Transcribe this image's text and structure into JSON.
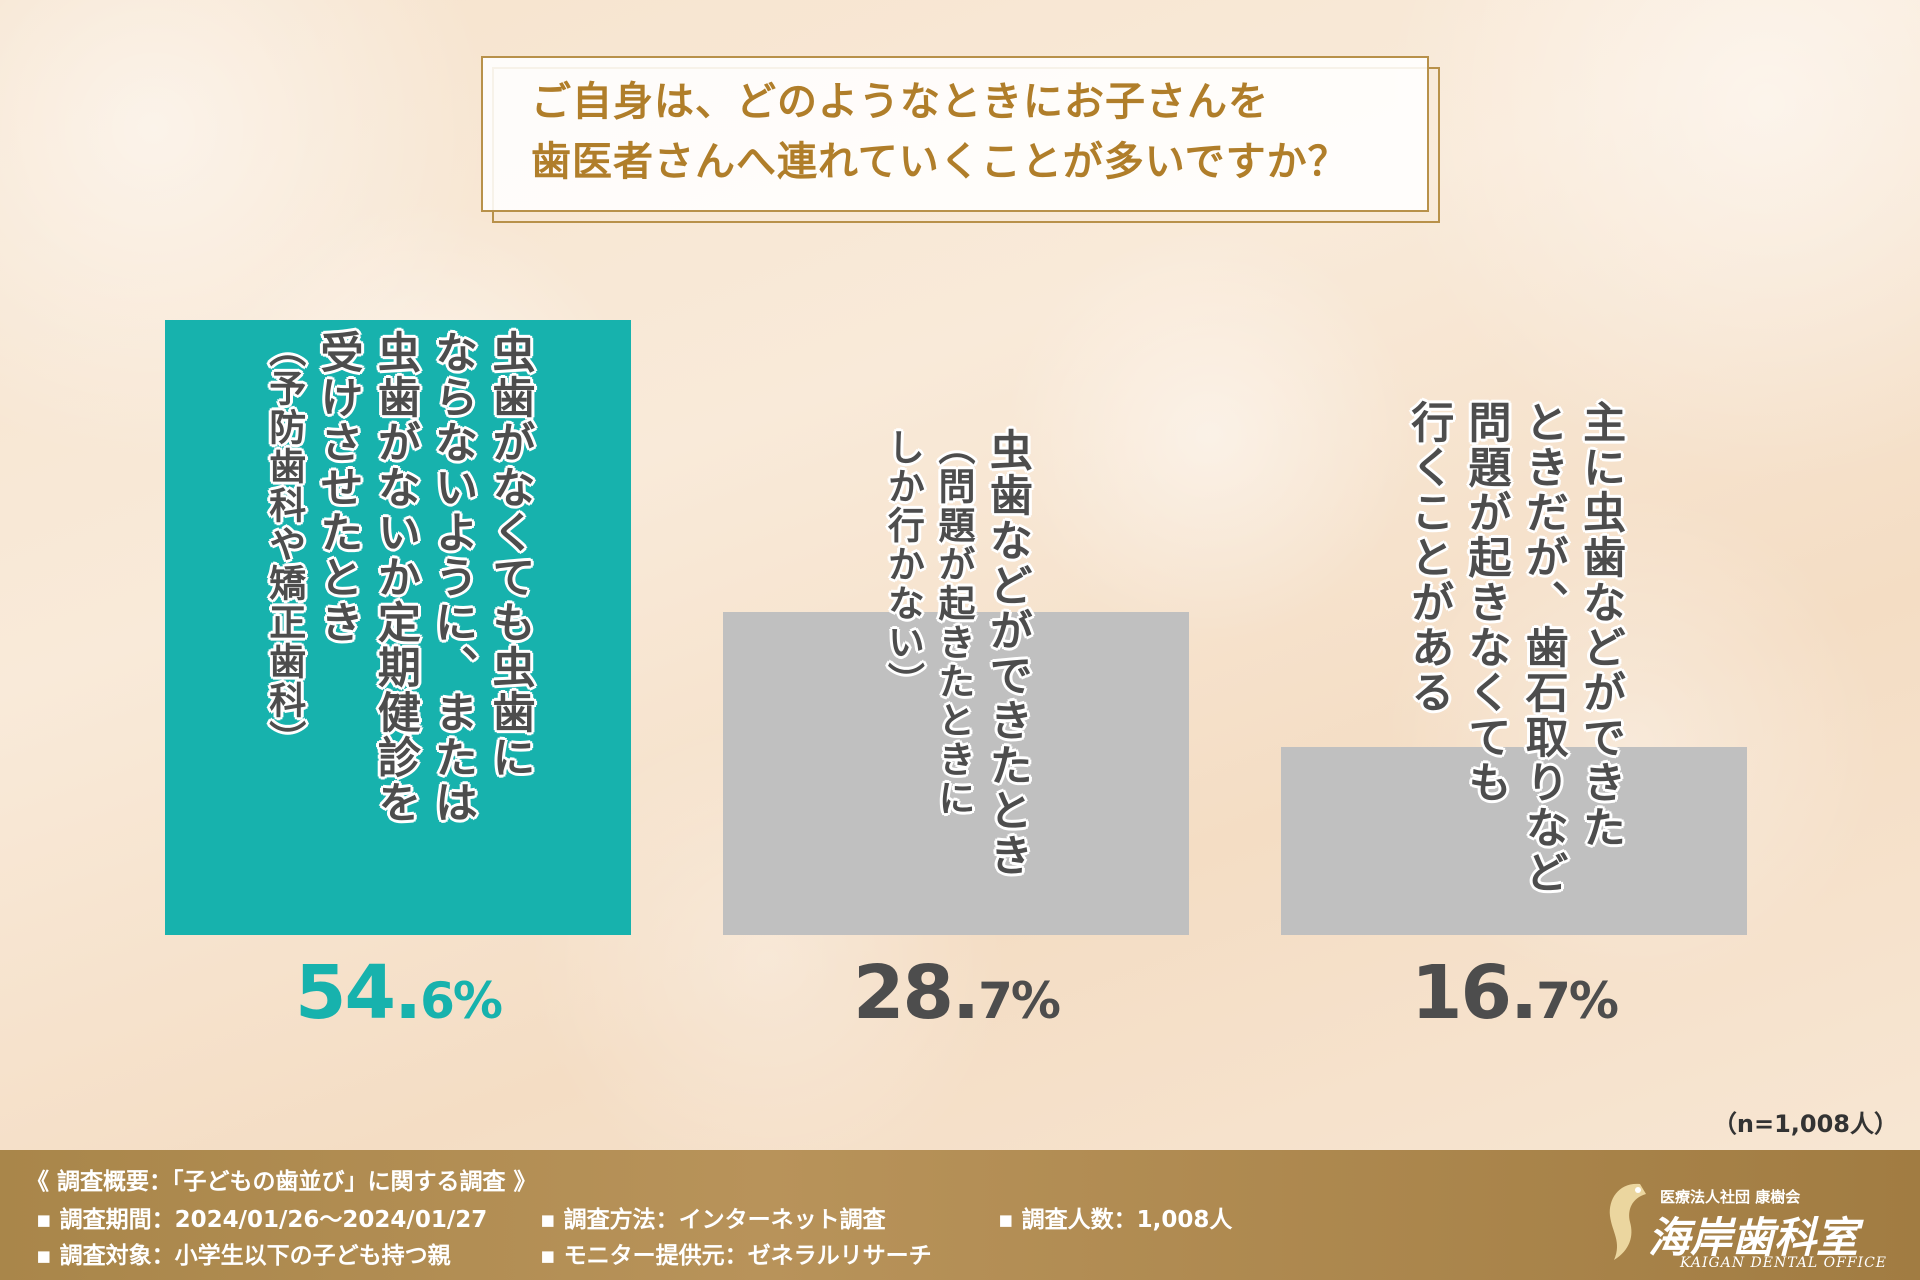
{
  "title": {
    "line1": "ご自身は、どのようなときにお子さんを",
    "line2": "歯医者さんへ連れていくことが多いですか？"
  },
  "colors": {
    "accent": "#17b2ad",
    "gray_bar": "#c0c0c0",
    "gold": "#b07e2a",
    "value_gray": "#4d4d4d"
  },
  "chart_data": {
    "type": "bar",
    "categories": [
      "虫歯がなくても虫歯にならないように、または虫歯がないか定期健診を受けさせたとき（予防歯科や矯正歯科）",
      "虫歯などができたとき（問題が起きたときにしか行かない）",
      "主に虫歯などができたときだが、歯石取りなど問題が起きなくても行くことがある"
    ],
    "values": [
      54.6,
      28.7,
      16.7
    ],
    "unit": "%",
    "ylim": [
      0,
      54.6
    ],
    "grid": false,
    "bars": [
      {
        "lines": [
          "虫歯がなくても虫歯に",
          "ならないように、または",
          "虫歯がないか定期健診を",
          "受けさせたとき",
          "（予防歯科や矯正歯科）"
        ],
        "small_lines": [
          4
        ],
        "value_int": "54.",
        "value_dec": "6%",
        "highlight": true
      },
      {
        "lines": [
          "虫歯などができたとき",
          "（問題が起きたときに",
          "しか行かない）"
        ],
        "small_lines": [
          1,
          2
        ],
        "value_int": "28.",
        "value_dec": "7%",
        "highlight": false
      },
      {
        "lines": [
          "主に虫歯などができた",
          "ときだが、歯石取りなど",
          "問題が起きなくても",
          "行くことがある"
        ],
        "small_lines": [],
        "value_int": "16.",
        "value_dec": "7%",
        "highlight": false
      }
    ]
  },
  "n_note": "（n=1,008人）",
  "footer": {
    "title": "《 調査概要：「子どもの歯並び」に関する調査 》",
    "items": [
      "▪ 調査期間：2024/01/26〜2024/01/27",
      "▪ 調査方法：インターネット調査",
      "▪ 調査人数：1,008人",
      "▪ 調査対象：小学生以下の子ども持つ親",
      "▪ モニター提供元：ゼネラルリサーチ"
    ],
    "logo_org": "医療法人社団 康樹会",
    "logo_name": "海岸歯科室",
    "logo_en": "KAIGAN DENTAL OFFICE"
  }
}
